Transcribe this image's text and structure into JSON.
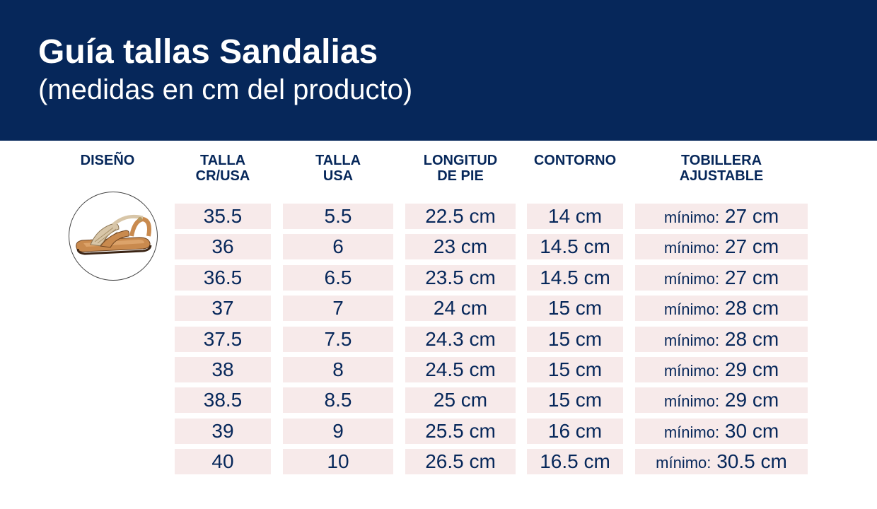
{
  "header": {
    "title": "Guía tallas Sandalias",
    "subtitle": "(medidas en cm del producto)"
  },
  "columns": [
    {
      "key": "diseno",
      "label": "DISEÑO"
    },
    {
      "key": "talla_cr",
      "label": "TALLA\nCR/USA"
    },
    {
      "key": "talla_usa",
      "label": "TALLA\nUSA"
    },
    {
      "key": "longitud",
      "label": "LONGITUD\nDE PIE"
    },
    {
      "key": "contorno",
      "label": "CONTORNO"
    },
    {
      "key": "tobillera",
      "label": "TOBILLERA\nAJUSTABLE"
    }
  ],
  "colors": {
    "header_bg": "#06275a",
    "cell_bg": "#f7eaea",
    "text": "#06275a"
  },
  "design_image": "sandal-icon",
  "rows": [
    {
      "talla_cr": "35.5",
      "talla_usa": "5.5",
      "longitud": "22.5 cm",
      "contorno": "14 cm",
      "tobillera_prefix": "mínimo:",
      "tobillera_value": "27 cm"
    },
    {
      "talla_cr": "36",
      "talla_usa": "6",
      "longitud": "23 cm",
      "contorno": "14.5 cm",
      "tobillera_prefix": "mínimo:",
      "tobillera_value": "27 cm"
    },
    {
      "talla_cr": "36.5",
      "talla_usa": "6.5",
      "longitud": "23.5 cm",
      "contorno": "14.5 cm",
      "tobillera_prefix": "mínimo:",
      "tobillera_value": "27 cm"
    },
    {
      "talla_cr": "37",
      "talla_usa": "7",
      "longitud": "24 cm",
      "contorno": "15 cm",
      "tobillera_prefix": "mínimo:",
      "tobillera_value": "28 cm"
    },
    {
      "talla_cr": "37.5",
      "talla_usa": "7.5",
      "longitud": "24.3 cm",
      "contorno": "15 cm",
      "tobillera_prefix": "mínimo:",
      "tobillera_value": "28 cm"
    },
    {
      "talla_cr": "38",
      "talla_usa": "8",
      "longitud": "24.5 cm",
      "contorno": "15 cm",
      "tobillera_prefix": "mínimo:",
      "tobillera_value": "29 cm"
    },
    {
      "talla_cr": "38.5",
      "talla_usa": "8.5",
      "longitud": "25 cm",
      "contorno": "15 cm",
      "tobillera_prefix": "mínimo:",
      "tobillera_value": "29 cm"
    },
    {
      "talla_cr": "39",
      "talla_usa": "9",
      "longitud": "25.5 cm",
      "contorno": "16 cm",
      "tobillera_prefix": "mínimo:",
      "tobillera_value": "30 cm"
    },
    {
      "talla_cr": "40",
      "talla_usa": "10",
      "longitud": "26.5 cm",
      "contorno": "16.5 cm",
      "tobillera_prefix": "mínimo:",
      "tobillera_value": "30.5 cm"
    }
  ]
}
